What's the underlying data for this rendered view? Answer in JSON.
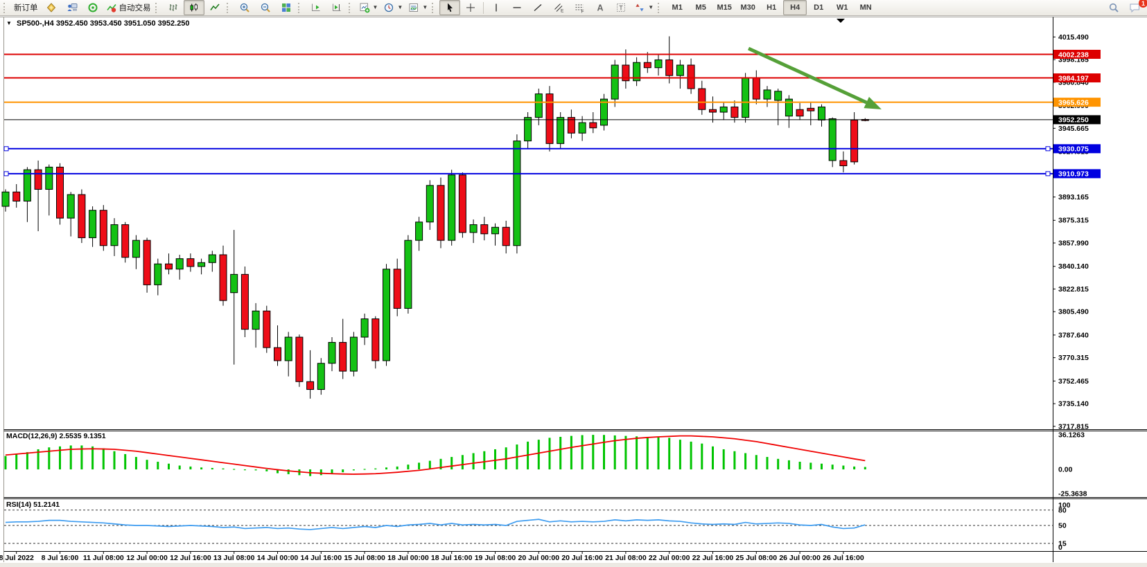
{
  "toolbar": {
    "new_order_label": "新订单",
    "autotrading_label": "自动交易",
    "timeframes": [
      "M1",
      "M5",
      "M15",
      "M30",
      "H1",
      "H4",
      "D1",
      "W1",
      "MN"
    ],
    "active_timeframe": "H4",
    "notification_count": "1"
  },
  "chart": {
    "title_symbol": "SP500-,H4",
    "title_ohlc": "3952.450 3953.450 3951.050 3952.250",
    "colors": {
      "bull": "#14c114",
      "bear": "#ee0d18",
      "wick": "#000000",
      "macd_hist": "#00c400",
      "macd_signal": "#f00000",
      "rsi_line": "#3b9bf0",
      "hline_red": "#ee0000",
      "hline_orange": "#ff9400",
      "hline_blue": "#0000e0",
      "price_line": "#000000",
      "arrow": "#55a038"
    },
    "price_axis": {
      "ticks": [
        "4015.490",
        "3998.165",
        "3980.840",
        "3962.990",
        "3945.665",
        "3927.815",
        "3910.490",
        "3893.165",
        "3875.315",
        "3857.990",
        "3840.140",
        "3822.815",
        "3805.490",
        "3787.640",
        "3770.315",
        "3752.465",
        "3735.140",
        "3717.815"
      ]
    },
    "time_axis": {
      "labels": [
        "8 Jul 2022",
        "8 Jul 16:00",
        "11 Jul 08:00",
        "12 Jul 00:00",
        "12 Jul 16:00",
        "13 Jul 08:00",
        "14 Jul 00:00",
        "14 Jul 16:00",
        "15 Jul 08:00",
        "18 Jul 00:00",
        "18 Jul 16:00",
        "19 Jul 08:00",
        "20 Jul 00:00",
        "20 Jul 16:00",
        "21 Jul 08:00",
        "22 Jul 00:00",
        "22 Jul 16:00",
        "25 Jul 08:00",
        "26 Jul 00:00",
        "26 Jul 16:00"
      ]
    },
    "hlines": [
      {
        "price": 4002.238,
        "label": "4002.238",
        "color": "#dd0000",
        "handles": false
      },
      {
        "price": 3984.197,
        "label": "3984.197",
        "color": "#dd0000",
        "handles": false
      },
      {
        "price": 3965.626,
        "label": "3965.626",
        "color": "#ff9400",
        "handles": false
      },
      {
        "price": 3930.075,
        "label": "3930.075",
        "color": "#0000e0",
        "handles": true
      },
      {
        "price": 3910.973,
        "label": "3910.973",
        "color": "#0000e0",
        "handles": true
      }
    ],
    "current_price": {
      "value": 3952.25,
      "label": "3952.250",
      "color": "#000000"
    },
    "arrow": {
      "from": [
        1080,
        70
      ],
      "to": [
        1272,
        158
      ]
    }
  },
  "chart_data": {
    "type": "candlestick",
    "symbol": "SP500-",
    "timeframe": "H4",
    "title": "SP500-,H4 3952.450 3953.450 3951.050 3952.250",
    "ylim": [
      3715.6,
      4030.0
    ],
    "ohlc": [
      [
        3886,
        3899,
        3882,
        3897
      ],
      [
        3897,
        3903,
        3885,
        3890
      ],
      [
        3890,
        3916,
        3874,
        3914
      ],
      [
        3914,
        3921,
        3867,
        3899
      ],
      [
        3899,
        3918,
        3879,
        3916
      ],
      [
        3916,
        3919,
        3872,
        3877
      ],
      [
        3877,
        3897,
        3863,
        3895
      ],
      [
        3895,
        3899,
        3858,
        3862
      ],
      [
        3862,
        3886,
        3855,
        3883
      ],
      [
        3883,
        3887,
        3852,
        3856
      ],
      [
        3856,
        3877,
        3848,
        3872
      ],
      [
        3872,
        3874,
        3843,
        3847
      ],
      [
        3847,
        3864,
        3838,
        3860
      ],
      [
        3860,
        3862,
        3820,
        3826
      ],
      [
        3826,
        3846,
        3818,
        3842
      ],
      [
        3842,
        3850,
        3834,
        3838
      ],
      [
        3838,
        3849,
        3830,
        3846
      ],
      [
        3846,
        3850,
        3836,
        3840
      ],
      [
        3840,
        3846,
        3834,
        3843
      ],
      [
        3843,
        3852,
        3836,
        3849
      ],
      [
        3849,
        3856,
        3810,
        3814
      ],
      [
        3820,
        3868,
        3765,
        3834
      ],
      [
        3834,
        3840,
        3786,
        3792
      ],
      [
        3792,
        3812,
        3778,
        3806
      ],
      [
        3806,
        3810,
        3774,
        3778
      ],
      [
        3778,
        3795,
        3764,
        3768
      ],
      [
        3768,
        3790,
        3756,
        3786
      ],
      [
        3786,
        3788,
        3748,
        3752
      ],
      [
        3752,
        3776,
        3739,
        3746
      ],
      [
        3746,
        3770,
        3742,
        3766
      ],
      [
        3766,
        3786,
        3760,
        3782
      ],
      [
        3782,
        3800,
        3754,
        3760
      ],
      [
        3760,
        3790,
        3756,
        3786
      ],
      [
        3786,
        3804,
        3780,
        3800
      ],
      [
        3800,
        3802,
        3762,
        3768
      ],
      [
        3768,
        3842,
        3764,
        3838
      ],
      [
        3838,
        3846,
        3802,
        3808
      ],
      [
        3808,
        3864,
        3804,
        3860
      ],
      [
        3860,
        3878,
        3852,
        3874
      ],
      [
        3874,
        3906,
        3868,
        3902
      ],
      [
        3902,
        3908,
        3854,
        3860
      ],
      [
        3860,
        3914,
        3856,
        3910
      ],
      [
        3910,
        3912,
        3862,
        3866
      ],
      [
        3866,
        3876,
        3858,
        3872
      ],
      [
        3872,
        3878,
        3860,
        3865
      ],
      [
        3865,
        3873,
        3856,
        3870
      ],
      [
        3870,
        3875,
        3850,
        3856
      ],
      [
        3856,
        3941,
        3850,
        3936
      ],
      [
        3936,
        3958,
        3930,
        3954
      ],
      [
        3954,
        3976,
        3948,
        3972
      ],
      [
        3972,
        3978,
        3928,
        3934
      ],
      [
        3934,
        3958,
        3930,
        3954
      ],
      [
        3954,
        3960,
        3938,
        3942
      ],
      [
        3942,
        3955,
        3936,
        3950
      ],
      [
        3950,
        3958,
        3942,
        3946
      ],
      [
        3948,
        3972,
        3944,
        3968
      ],
      [
        3968,
        3998,
        3962,
        3994
      ],
      [
        3994,
        4006,
        3976,
        3982
      ],
      [
        3982,
        4000,
        3978,
        3996
      ],
      [
        3996,
        4004,
        3988,
        3992
      ],
      [
        3992,
        4002,
        3986,
        3998
      ],
      [
        3998,
        4016,
        3980,
        3986
      ],
      [
        3986,
        3998,
        3976,
        3994
      ],
      [
        3994,
        3999,
        3972,
        3976
      ],
      [
        3976,
        3982,
        3956,
        3960
      ],
      [
        3960,
        3970,
        3950,
        3958
      ],
      [
        3958,
        3966,
        3952,
        3962
      ],
      [
        3962,
        3967,
        3950,
        3954
      ],
      [
        3954,
        3988,
        3950,
        3984
      ],
      [
        3984,
        3990,
        3964,
        3968
      ],
      [
        3968,
        3978,
        3962,
        3975
      ],
      [
        3967,
        3976,
        3948,
        3974
      ],
      [
        3955,
        3971,
        3946,
        3968
      ],
      [
        3960,
        3965,
        3952,
        3955
      ],
      [
        3961,
        3966,
        3948,
        3959
      ],
      [
        3952,
        3964,
        3947,
        3962
      ],
      [
        3921,
        3954,
        3916,
        3953
      ],
      [
        3921,
        3928,
        3912,
        3917
      ],
      [
        3952,
        3958,
        3918,
        3920
      ],
      [
        3952.45,
        3953.45,
        3951.05,
        3952.25
      ]
    ],
    "indicators": {
      "macd": {
        "label": "MACD(12,26,9) 2.5535 9.1351",
        "params": "12,26,9",
        "value": 2.5535,
        "signal_value": 9.1351,
        "ylim": [
          -28.9,
          40.5
        ],
        "axis_labels": [
          "36.1263",
          "0.00",
          "-25.3638"
        ],
        "axis_values": [
          36.1263,
          0,
          -25.3638
        ],
        "histogram": [
          14,
          16,
          18,
          21,
          23,
          24,
          25,
          25,
          24,
          22,
          19,
          16,
          13,
          10,
          8,
          6,
          4,
          3,
          2,
          1.5,
          1,
          0.5,
          0,
          -1,
          -2,
          -4,
          -5,
          -6,
          -7,
          -6,
          -5,
          -3,
          -1,
          0.5,
          1,
          2,
          3,
          5,
          7,
          9,
          11,
          13,
          15,
          17,
          19,
          21,
          23,
          26,
          29,
          31,
          33,
          34,
          35,
          35.8,
          36.1,
          36,
          35.5,
          35,
          34.5,
          34,
          33.5,
          33,
          31,
          29,
          27,
          24,
          21,
          19,
          17,
          15,
          13,
          11,
          9.5,
          8,
          7,
          6,
          5,
          4,
          3,
          2.55
        ],
        "signal": [
          15,
          16,
          17,
          18,
          19,
          20,
          21,
          21.3,
          21.5,
          21.3,
          21,
          20,
          19,
          17.5,
          16,
          14.5,
          13,
          11.5,
          10,
          8.5,
          7,
          5.5,
          4,
          2.5,
          1,
          -0.3,
          -1.5,
          -2.5,
          -3.5,
          -4,
          -4.5,
          -4.8,
          -5,
          -4.8,
          -4.5,
          -3.8,
          -3,
          -2,
          -1,
          0.5,
          2,
          3.5,
          5,
          6.5,
          8,
          9.5,
          11,
          13,
          15,
          17,
          19,
          21,
          23,
          24.8,
          26.5,
          28.3,
          30,
          31.3,
          32.5,
          33.3,
          34,
          34.5,
          35,
          35,
          34.5,
          34,
          33,
          32,
          30.5,
          29,
          27,
          25,
          23,
          21,
          19,
          17,
          15,
          13,
          11,
          9.14
        ]
      },
      "rsi": {
        "label": "RSI(14) 51.2141",
        "period": 14,
        "value": 51.2141,
        "ylim": [
          0,
          100
        ],
        "levels": [
          80,
          50,
          15
        ],
        "axis_labels": [
          "100",
          "80",
          "50",
          "15",
          "0"
        ],
        "axis_values": [
          100,
          80,
          50,
          15,
          0
        ],
        "values": [
          56,
          57,
          57,
          58,
          60,
          60,
          58,
          57,
          56,
          55,
          53,
          51,
          50,
          50,
          49,
          48,
          49,
          50,
          49,
          48,
          46,
          47,
          44,
          45,
          46,
          44,
          45,
          43,
          42,
          44,
          46,
          44,
          46,
          48,
          46,
          50,
          48,
          51,
          52,
          54,
          51,
          54,
          51,
          52,
          51,
          52,
          50,
          58,
          60,
          62,
          57,
          59,
          57,
          58,
          57,
          58,
          61,
          59,
          61,
          60,
          61,
          59,
          58,
          55,
          53,
          52,
          53,
          52,
          56,
          53,
          54,
          55,
          54,
          51,
          50,
          52,
          47,
          44,
          45,
          51.2
        ]
      }
    }
  }
}
